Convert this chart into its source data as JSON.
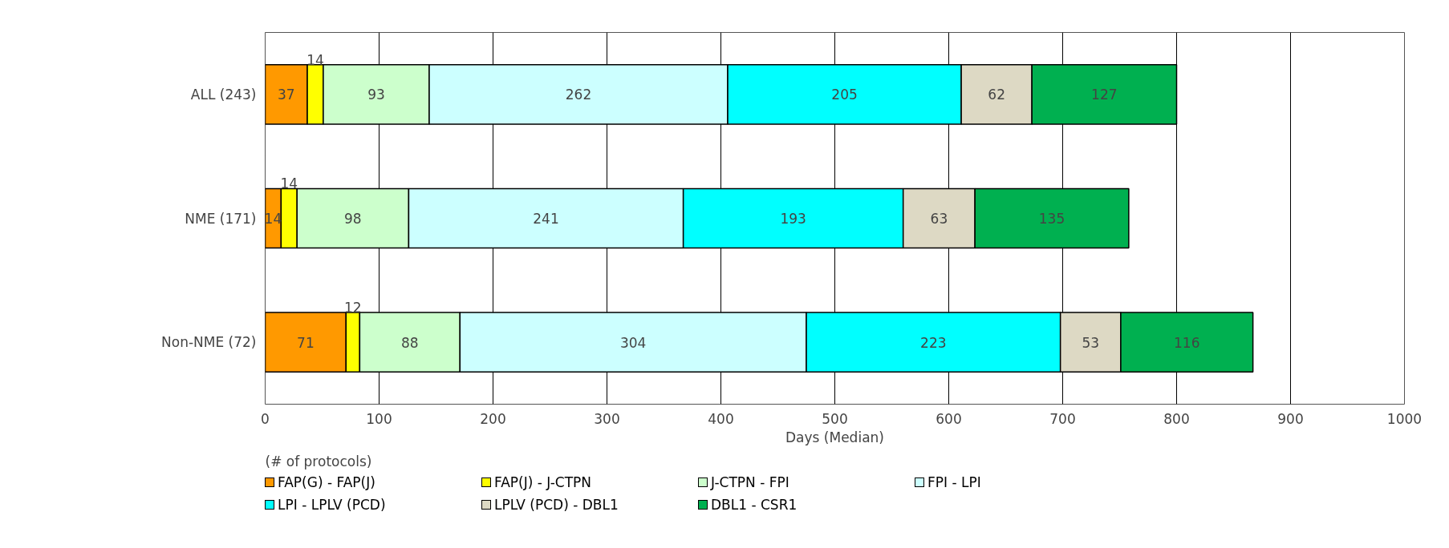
{
  "chart_data": {
    "type": "bar",
    "orientation": "horizontal",
    "stacked": true,
    "data_labels": true,
    "categories": [
      "ALL (243)",
      "NME (171)",
      "Non-NME (72)"
    ],
    "series": [
      {
        "name": "FAP(G) - FAP(J)",
        "color": "#ff9900",
        "values": [
          37,
          14,
          71
        ]
      },
      {
        "name": "FAP(J) - J-CTPN",
        "color": "#ffff00",
        "values": [
          14,
          14,
          12
        ]
      },
      {
        "name": "J-CTPN - FPI",
        "color": "#ccffcc",
        "values": [
          93,
          98,
          88
        ]
      },
      {
        "name": "FPI - LPI",
        "color": "#ccffff",
        "values": [
          262,
          241,
          304
        ]
      },
      {
        "name": "LPI - LPLV (PCD)",
        "color": "#00ffff",
        "values": [
          205,
          193,
          223
        ]
      },
      {
        "name": "LPLV (PCD) - DBL1",
        "color": "#ddd9c4",
        "values": [
          62,
          63,
          53
        ]
      },
      {
        "name": "DBL1 - CSR1",
        "color": "#00b050",
        "values": [
          127,
          135,
          116
        ]
      }
    ],
    "xlabel": "Days (Median)",
    "xlim": [
      0,
      1000
    ],
    "xticks": [
      0,
      100,
      200,
      300,
      400,
      500,
      600,
      700,
      800,
      900,
      1000
    ],
    "grid": "x",
    "legend": "bottom",
    "annotations": [
      "(# of protocols)"
    ]
  }
}
